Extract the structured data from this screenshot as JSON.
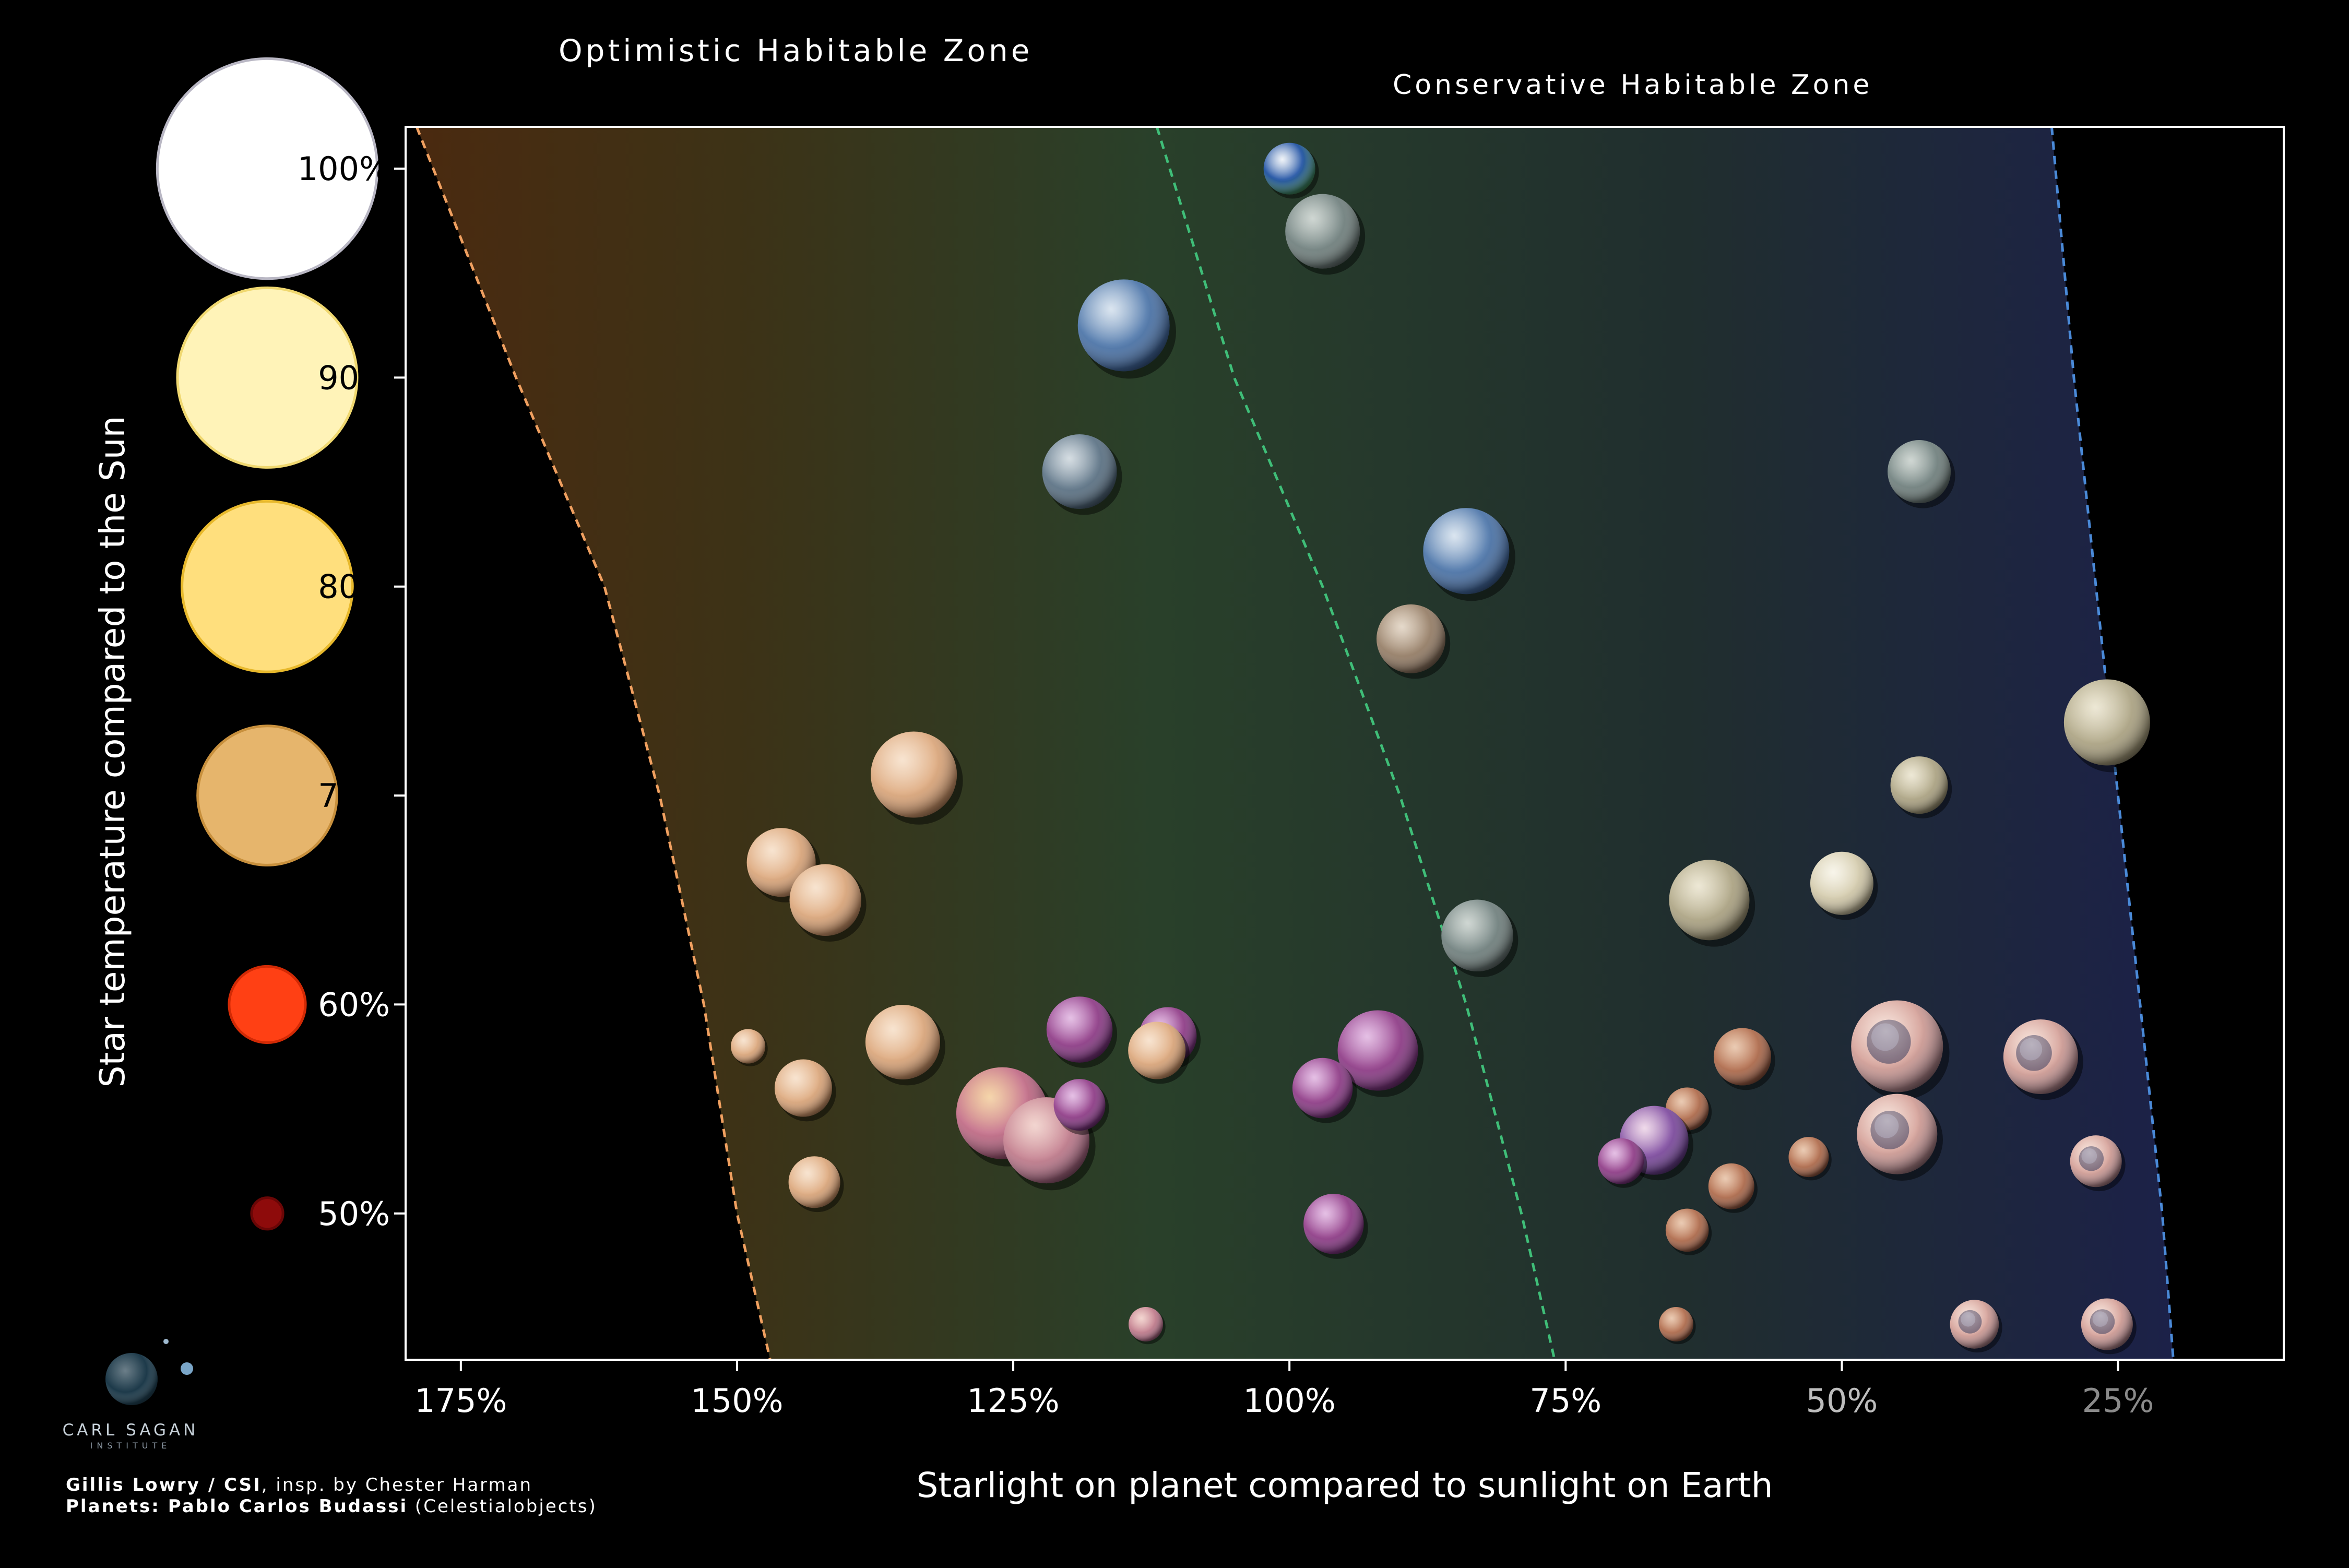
{
  "chart_data": {
    "type": "scatter",
    "xlabel": "Starlight on planet compared to sunlight on Earth",
    "ylabel": "Star temperature compared to the Sun",
    "x_axis_reversed": true,
    "xlim": [
      180,
      10
    ],
    "ylim": [
      43,
      102
    ],
    "x_ticks": [
      {
        "value": 175,
        "label": "175%",
        "color": "#ffffff"
      },
      {
        "value": 150,
        "label": "150%",
        "color": "#ffffff"
      },
      {
        "value": 125,
        "label": "125%",
        "color": "#ffffff"
      },
      {
        "value": 100,
        "label": "100%",
        "color": "#ffffff"
      },
      {
        "value": 75,
        "label": "75%",
        "color": "#ffffff"
      },
      {
        "value": 50,
        "label": "50%",
        "color": "#bdbdbd"
      },
      {
        "value": 25,
        "label": "25%",
        "color": "#8a8a8a"
      }
    ],
    "y_ticks": [
      {
        "value": 100,
        "label": "100%",
        "star_color": "#ffffff",
        "star_edge": "#b9b7c4",
        "star_size": 0.98
      },
      {
        "value": 90,
        "label": "90%",
        "star_color": "#fff3b8",
        "star_edge": "#f0d870",
        "star_size": 0.8
      },
      {
        "value": 80,
        "label": "80%",
        "star_color": "#ffdf7d",
        "star_edge": "#e8b92c",
        "star_size": 0.76
      },
      {
        "value": 70,
        "label": "70%",
        "star_color": "#e6b56c",
        "star_edge": "#c8903d",
        "star_size": 0.62
      },
      {
        "value": 60,
        "label": "60%",
        "star_color": "#ff4014",
        "star_edge": "#d22a05",
        "star_size": 0.34
      },
      {
        "value": 50,
        "label": "50%",
        "star_color": "#8e0b0b",
        "star_edge": "#6a0606",
        "star_size": 0.14
      }
    ],
    "zone_lines": [
      {
        "name": "optimistic-inner",
        "color": "#f0a060",
        "points": [
          [
            179,
            102
          ],
          [
            170,
            90
          ],
          [
            162,
            80
          ],
          [
            157,
            70
          ],
          [
            153,
            60
          ],
          [
            150,
            50
          ],
          [
            147,
            43
          ]
        ]
      },
      {
        "name": "conservative-inner",
        "color": "#3fbe78",
        "points": [
          [
            112,
            102
          ],
          [
            105,
            90
          ],
          [
            97,
            80
          ],
          [
            90,
            70
          ],
          [
            84,
            60
          ],
          [
            79,
            50
          ],
          [
            76,
            43
          ]
        ]
      },
      {
        "name": "outer",
        "color": "#4a8ad8",
        "points": [
          [
            31,
            102
          ],
          [
            29,
            90
          ],
          [
            27,
            80
          ],
          [
            25,
            70
          ],
          [
            23,
            60
          ],
          [
            21,
            50
          ],
          [
            20,
            43
          ]
        ]
      }
    ],
    "planets": [
      {
        "x": 100,
        "y": 100,
        "size": 0.9,
        "palette": "earth"
      },
      {
        "x": 97,
        "y": 97,
        "size": 1.3,
        "palette": "gray"
      },
      {
        "x": 115,
        "y": 92.5,
        "size": 1.6,
        "palette": "blue"
      },
      {
        "x": 119,
        "y": 85.5,
        "size": 1.3,
        "palette": "steel"
      },
      {
        "x": 43,
        "y": 85.5,
        "size": 1.1,
        "palette": "gray"
      },
      {
        "x": 84,
        "y": 81.7,
        "size": 1.5,
        "palette": "blue"
      },
      {
        "x": 89,
        "y": 77.5,
        "size": 1.2,
        "palette": "tan"
      },
      {
        "x": 26,
        "y": 73.5,
        "size": 1.5,
        "palette": "sand"
      },
      {
        "x": 134,
        "y": 71,
        "size": 1.5,
        "palette": "peach"
      },
      {
        "x": 43,
        "y": 70.5,
        "size": 1.0,
        "palette": "sand"
      },
      {
        "x": 146,
        "y": 66.8,
        "size": 1.2,
        "palette": "peach"
      },
      {
        "x": 142,
        "y": 65,
        "size": 1.25,
        "palette": "peach"
      },
      {
        "x": 62,
        "y": 65,
        "size": 1.4,
        "palette": "sand"
      },
      {
        "x": 50,
        "y": 65.8,
        "size": 1.1,
        "palette": "cream"
      },
      {
        "x": 83,
        "y": 63.3,
        "size": 1.25,
        "palette": "gray"
      },
      {
        "x": 149,
        "y": 58,
        "size": 0.6,
        "palette": "peach"
      },
      {
        "x": 144,
        "y": 56,
        "size": 1.0,
        "palette": "peach"
      },
      {
        "x": 135,
        "y": 58.2,
        "size": 1.3,
        "palette": "peach"
      },
      {
        "x": 126,
        "y": 54.8,
        "size": 1.6,
        "palette": "rose"
      },
      {
        "x": 122,
        "y": 53.5,
        "size": 1.5,
        "palette": "pinkmauve"
      },
      {
        "x": 119,
        "y": 58.8,
        "size": 1.15,
        "palette": "purple"
      },
      {
        "x": 119,
        "y": 55.2,
        "size": 0.9,
        "palette": "purple"
      },
      {
        "x": 111,
        "y": 58.5,
        "size": 1.0,
        "palette": "purple"
      },
      {
        "x": 112,
        "y": 57.8,
        "size": 1.0,
        "palette": "peach"
      },
      {
        "x": 92,
        "y": 57.8,
        "size": 1.4,
        "palette": "purple"
      },
      {
        "x": 97,
        "y": 56,
        "size": 1.05,
        "palette": "purple"
      },
      {
        "x": 143,
        "y": 51.5,
        "size": 0.9,
        "palette": "peach"
      },
      {
        "x": 96,
        "y": 49.5,
        "size": 1.05,
        "palette": "purple"
      },
      {
        "x": 113,
        "y": 44.7,
        "size": 0.6,
        "palette": "pinkmauve"
      },
      {
        "x": 59,
        "y": 57.5,
        "size": 1.0,
        "palette": "rust"
      },
      {
        "x": 64,
        "y": 55,
        "size": 0.75,
        "palette": "rust"
      },
      {
        "x": 67,
        "y": 53.5,
        "size": 1.2,
        "palette": "lavender"
      },
      {
        "x": 70,
        "y": 52.5,
        "size": 0.8,
        "palette": "purple"
      },
      {
        "x": 60,
        "y": 51.3,
        "size": 0.8,
        "palette": "rust"
      },
      {
        "x": 53,
        "y": 52.7,
        "size": 0.7,
        "palette": "rust"
      },
      {
        "x": 64,
        "y": 49.2,
        "size": 0.75,
        "palette": "rust"
      },
      {
        "x": 65,
        "y": 44.7,
        "size": 0.6,
        "palette": "rust"
      },
      {
        "x": 45,
        "y": 58,
        "size": 1.6,
        "palette": "crater"
      },
      {
        "x": 32,
        "y": 57.5,
        "size": 1.3,
        "palette": "crater"
      },
      {
        "x": 45,
        "y": 53.8,
        "size": 1.4,
        "palette": "crater"
      },
      {
        "x": 27,
        "y": 52.5,
        "size": 0.9,
        "palette": "crater"
      },
      {
        "x": 38,
        "y": 44.7,
        "size": 0.85,
        "palette": "crater"
      },
      {
        "x": 26,
        "y": 44.7,
        "size": 0.9,
        "palette": "crater"
      }
    ]
  },
  "legend": {
    "optimistic": "Optimistic Habitable Zone",
    "conservative": "Conservative Habitable Zone",
    "optimistic_color": "#7a5535",
    "conservative_color": "#3e5e48",
    "outer_color": "#3a3f78"
  },
  "credits": {
    "line1_bold": "Gillis Lowry / CSI",
    "line1_rest": ", insp. by Chester Harman",
    "line2_bold": "Planets: Pablo Carlos Budassi",
    "line2_rest": " (Celestialobjects)"
  },
  "logo": {
    "name": "CARL SAGAN",
    "sub": "INSTITUTE"
  },
  "colors": {
    "axis": "#ffffff",
    "text": "#ffffff",
    "band_optimistic": "#4a2d14",
    "band_conservative": "#28402c",
    "band_outer": "#1c2045"
  }
}
